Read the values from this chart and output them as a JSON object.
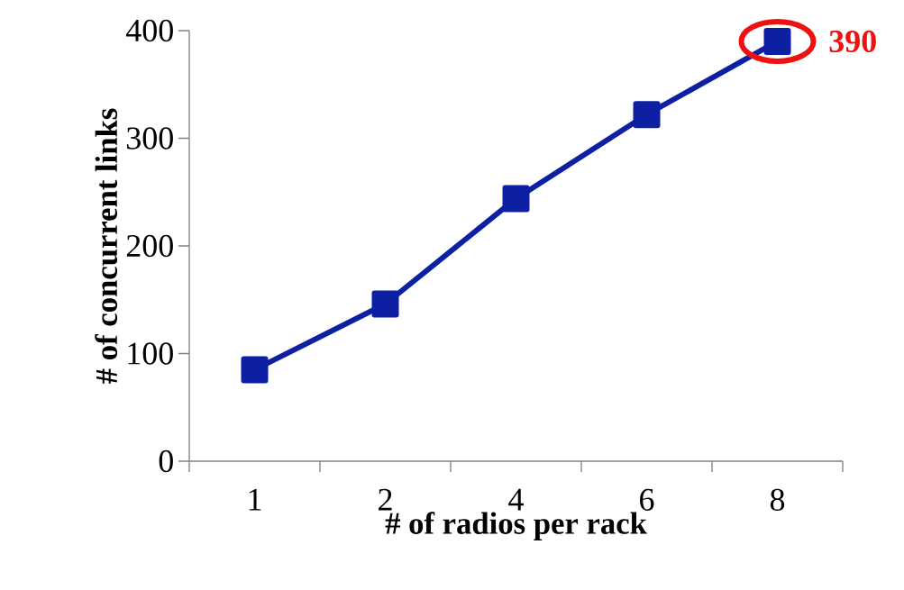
{
  "chart_data": {
    "type": "line",
    "xlabel": "# of radios per rack",
    "ylabel": "# of concurrent links",
    "categories": [
      "1",
      "2",
      "4",
      "6",
      "8"
    ],
    "series": [
      {
        "color": "#0d1fa3",
        "values": [
          85,
          146,
          244,
          322,
          390
        ]
      }
    ],
    "ylim": [
      0,
      400
    ],
    "yticks": [
      0,
      100,
      200,
      300,
      400
    ],
    "marker": "square",
    "annotations": [
      {
        "text": "390",
        "x": "8",
        "y": 390
      }
    ]
  }
}
